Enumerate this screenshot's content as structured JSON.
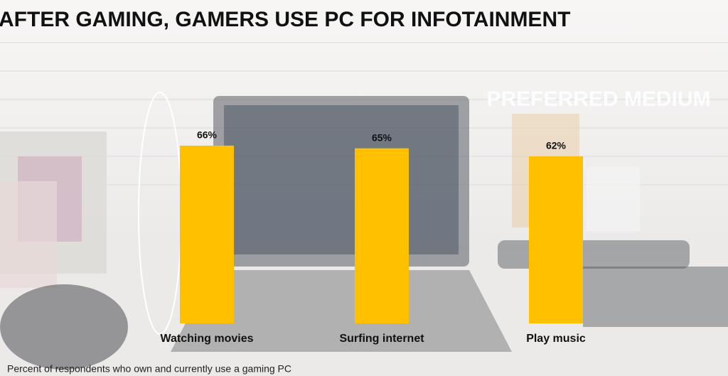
{
  "chart_data": {
    "type": "bar",
    "title": "AFTER GAMING, GAMERS USE PC FOR INFOTAINMENT",
    "subtitle": "PREFERRED MEDIUM",
    "categories": [
      "Watching movies",
      "Surfing internet",
      "Play music"
    ],
    "values": [
      66,
      65,
      62
    ],
    "value_labels": [
      "66%",
      "65%",
      "62%"
    ],
    "color": "#ffc000",
    "footnote": "Percent of respondents who own and currently use a gaming PC"
  }
}
